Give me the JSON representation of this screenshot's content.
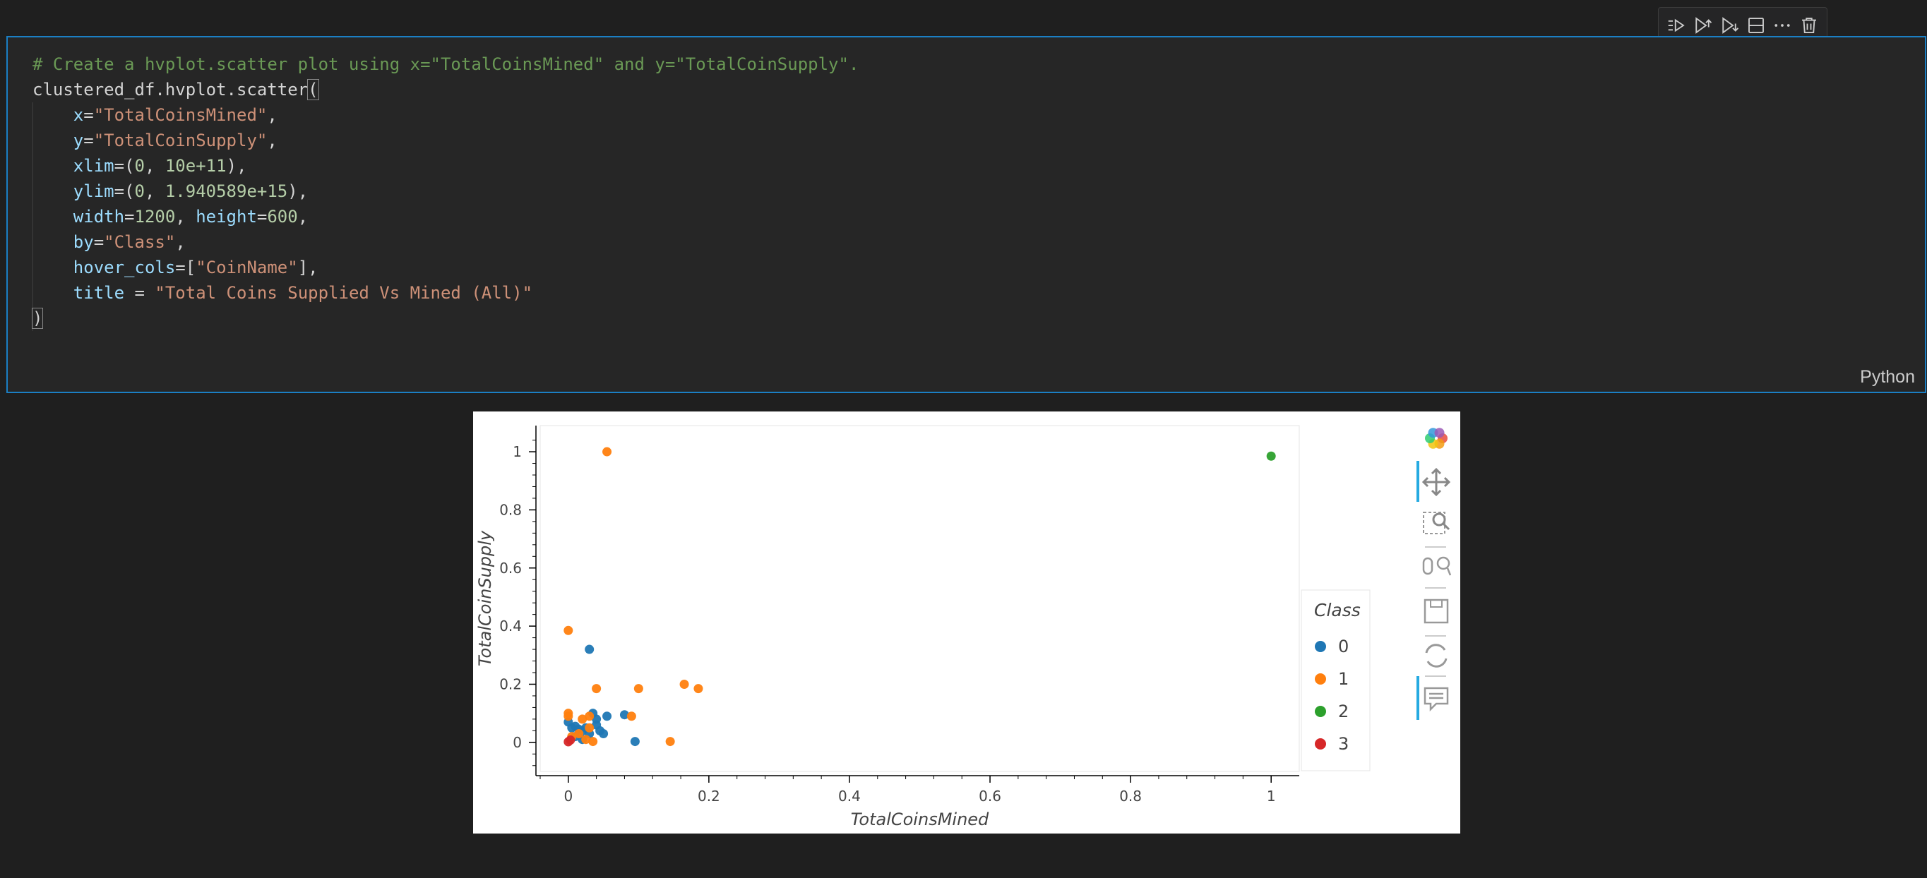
{
  "toolbar": {
    "icons": [
      "run-by-line-icon",
      "execute-above-icon",
      "execute-below-icon",
      "split-cell-icon",
      "more-actions-icon",
      "delete-cell-icon"
    ]
  },
  "cell": {
    "language": "Python",
    "lines": [
      [
        {
          "t": "# Create a hvplot.scatter plot using x=\"TotalCoinsMined\" and y=\"TotalCoinSupply\".",
          "c": "c-com"
        }
      ],
      [
        {
          "t": "clustered_df.hvplot.scatter",
          "c": "c-def"
        },
        {
          "t": "(",
          "c": "c-def paren-box"
        }
      ],
      [
        {
          "t": "    ",
          "c": "c-def"
        },
        {
          "t": "x",
          "c": "c-var"
        },
        {
          "t": "=",
          "c": "c-def"
        },
        {
          "t": "\"TotalCoinsMined\"",
          "c": "c-str"
        },
        {
          "t": ",",
          "c": "c-def"
        }
      ],
      [
        {
          "t": "    ",
          "c": "c-def"
        },
        {
          "t": "y",
          "c": "c-var"
        },
        {
          "t": "=",
          "c": "c-def"
        },
        {
          "t": "\"TotalCoinSupply\"",
          "c": "c-str"
        },
        {
          "t": ",",
          "c": "c-def"
        }
      ],
      [
        {
          "t": "    ",
          "c": "c-def"
        },
        {
          "t": "xlim",
          "c": "c-var"
        },
        {
          "t": "=(",
          "c": "c-def"
        },
        {
          "t": "0",
          "c": "c-num"
        },
        {
          "t": ", ",
          "c": "c-def"
        },
        {
          "t": "10e+11",
          "c": "c-num"
        },
        {
          "t": "),",
          "c": "c-def"
        }
      ],
      [
        {
          "t": "    ",
          "c": "c-def"
        },
        {
          "t": "ylim",
          "c": "c-var"
        },
        {
          "t": "=(",
          "c": "c-def"
        },
        {
          "t": "0",
          "c": "c-num"
        },
        {
          "t": ", ",
          "c": "c-def"
        },
        {
          "t": "1.940589e+15",
          "c": "c-num"
        },
        {
          "t": "),",
          "c": "c-def"
        }
      ],
      [
        {
          "t": "    ",
          "c": "c-def"
        },
        {
          "t": "width",
          "c": "c-var"
        },
        {
          "t": "=",
          "c": "c-def"
        },
        {
          "t": "1200",
          "c": "c-num"
        },
        {
          "t": ", ",
          "c": "c-def"
        },
        {
          "t": "height",
          "c": "c-var"
        },
        {
          "t": "=",
          "c": "c-def"
        },
        {
          "t": "600",
          "c": "c-num"
        },
        {
          "t": ",",
          "c": "c-def"
        }
      ],
      [
        {
          "t": "    ",
          "c": "c-def"
        },
        {
          "t": "by",
          "c": "c-var"
        },
        {
          "t": "=",
          "c": "c-def"
        },
        {
          "t": "\"Class\"",
          "c": "c-str"
        },
        {
          "t": ",",
          "c": "c-def"
        }
      ],
      [
        {
          "t": "    ",
          "c": "c-def"
        },
        {
          "t": "hover_cols",
          "c": "c-var"
        },
        {
          "t": "=[",
          "c": "c-def"
        },
        {
          "t": "\"CoinName\"",
          "c": "c-str"
        },
        {
          "t": "],",
          "c": "c-def"
        }
      ],
      [
        {
          "t": "    ",
          "c": "c-def"
        },
        {
          "t": "title",
          "c": "c-var"
        },
        {
          "t": " = ",
          "c": "c-def"
        },
        {
          "t": "\"Total Coins Supplied Vs Mined (All)\"",
          "c": "c-str"
        }
      ],
      [
        {
          "t": ")",
          "c": "c-def paren-box"
        }
      ]
    ]
  },
  "plot_toolbar": {
    "icons": [
      "bokeh-logo-icon",
      "pan-icon",
      "box-zoom-icon",
      "wheel-zoom-icon",
      "save-icon",
      "reset-icon",
      "hover-icon"
    ]
  },
  "chart_data": {
    "type": "scatter",
    "title": "",
    "xlabel": "TotalCoinsMined",
    "ylabel": "TotalCoinSupply",
    "xlim": [
      -0.04,
      1.04
    ],
    "ylim": [
      -0.1,
      1.09
    ],
    "xticks": [
      0,
      0.2,
      0.4,
      0.6,
      0.8,
      1
    ],
    "yticks": [
      0,
      0.2,
      0.4,
      0.6,
      0.8,
      1
    ],
    "xtick_labels": [
      "0",
      "0.2",
      "0.4",
      "0.6",
      "0.8",
      "1"
    ],
    "ytick_labels": [
      "0",
      "0.2",
      "0.4",
      "0.6",
      "0.8",
      "1"
    ],
    "legend_title": "Class",
    "legend_position": "right",
    "series": [
      {
        "name": "0",
        "color": "#1f77b4",
        "points": [
          [
            0,
            0.07
          ],
          [
            0.005,
            0.05
          ],
          [
            0.01,
            0.055
          ],
          [
            0.015,
            0.045
          ],
          [
            0.02,
            0.04
          ],
          [
            0.025,
            0.05
          ],
          [
            0.03,
            0.32
          ],
          [
            0.035,
            0.1
          ],
          [
            0.04,
            0.08
          ],
          [
            0.045,
            0.04
          ],
          [
            0.05,
            0.03
          ],
          [
            0.055,
            0.09
          ],
          [
            0.08,
            0.095
          ],
          [
            0.095,
            0.003
          ],
          [
            0.01,
            0.02
          ],
          [
            0.02,
            0.01
          ],
          [
            0.03,
            0.03
          ],
          [
            0.04,
            0.06
          ]
        ]
      },
      {
        "name": "1",
        "color": "#ff7f0e",
        "points": [
          [
            0.055,
            1.0
          ],
          [
            0,
            0.385
          ],
          [
            0,
            0.1
          ],
          [
            0,
            0.09
          ],
          [
            0.02,
            0.08
          ],
          [
            0.03,
            0.09
          ],
          [
            0.04,
            0.185
          ],
          [
            0.1,
            0.185
          ],
          [
            0.165,
            0.2
          ],
          [
            0.185,
            0.185
          ],
          [
            0.09,
            0.09
          ],
          [
            0.145,
            0.003
          ],
          [
            0.03,
            0.05
          ],
          [
            0.035,
            0.003
          ],
          [
            0.005,
            0.02
          ],
          [
            0.015,
            0.03
          ],
          [
            0.025,
            0.01
          ]
        ]
      },
      {
        "name": "2",
        "color": "#2ca02c",
        "points": [
          [
            1.0,
            0.985
          ]
        ]
      },
      {
        "name": "3",
        "color": "#d62728",
        "points": [
          [
            0,
            0.002
          ],
          [
            0.003,
            0.008
          ]
        ]
      }
    ]
  }
}
